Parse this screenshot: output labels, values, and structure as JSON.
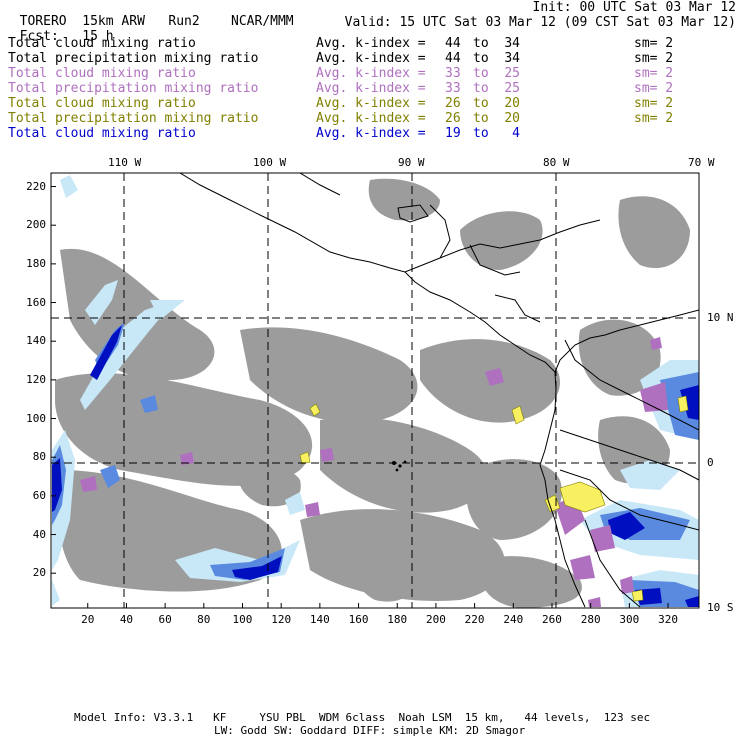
{
  "header": {
    "model": "TORERO",
    "resolution": "15km ARW",
    "run": "Run2",
    "org": "NCAR/MMM",
    "init": "Init: 00 UTC Sat 03 Mar 12",
    "fcst_label": "Fcst:",
    "fcst_hours": "15 h",
    "valid": "Valid: 15 UTC Sat 03 Mar 12 (09 CST Sat 03 Mar 12)"
  },
  "legend": [
    {
      "field": "Total cloud mixing ratio",
      "kindex": "Avg. k-index =",
      "from": "44",
      "to_word": "to",
      "to": "34",
      "sm": "sm= 2",
      "color": "#000000"
    },
    {
      "field": "Total precipitation mixing ratio",
      "kindex": "Avg. k-index =",
      "from": "44",
      "to_word": "to",
      "to": "34",
      "sm": "sm= 2",
      "color": "#000000"
    },
    {
      "field": "Total cloud mixing ratio",
      "kindex": "Avg. k-index =",
      "from": "33",
      "to_word": "to",
      "to": "25",
      "sm": "sm= 2",
      "color": "#b070c0"
    },
    {
      "field": "Total precipitation mixing ratio",
      "kindex": "Avg. k-index =",
      "from": "33",
      "to_word": "to",
      "to": "25",
      "sm": "sm= 2",
      "color": "#b070c0"
    },
    {
      "field": "Total cloud mixing ratio",
      "kindex": "Avg. k-index =",
      "from": "26",
      "to_word": "to",
      "to": "20",
      "sm": "sm= 2",
      "color": "#808000"
    },
    {
      "field": "Total precipitation mixing ratio",
      "kindex": "Avg. k-index =",
      "from": "26",
      "to_word": "to",
      "to": "20",
      "sm": "sm= 2",
      "color": "#808000"
    },
    {
      "field": "Total cloud mixing ratio",
      "kindex": "Avg. k-index =",
      "from": "19",
      "to_word": "to",
      "to": "4",
      "sm": "",
      "color": "#0000cc"
    }
  ],
  "map": {
    "lon_labels": [
      "110 W",
      "100 W",
      "90 W",
      "80 W",
      "70 W"
    ],
    "lat_labels": [
      "10 N",
      "0",
      "10 S"
    ],
    "y_ticks": [
      "220",
      "200",
      "180",
      "160",
      "140",
      "120",
      "100",
      "80",
      "60",
      "40",
      "20"
    ],
    "x_ticks": [
      "20",
      "40",
      "60",
      "80",
      "100",
      "120",
      "140",
      "160",
      "180",
      "200",
      "220",
      "240",
      "260",
      "280",
      "300",
      "320"
    ],
    "colors": {
      "gray": "#9c9c9c",
      "light_blue": "#c8e8f8",
      "blue": "#5a8ae0",
      "dark_blue": "#0010c0",
      "purple": "#b070c0",
      "yellow": "#f8f060"
    }
  },
  "footer": {
    "line1": "Model Info: V3.3.1   KF     YSU PBL  WDM 6class  Noah LSM  15 km,   44 levels,  123 sec",
    "line2": "LW: Godd SW: Goddard DIFF: simple KM: 2D Smagor"
  }
}
